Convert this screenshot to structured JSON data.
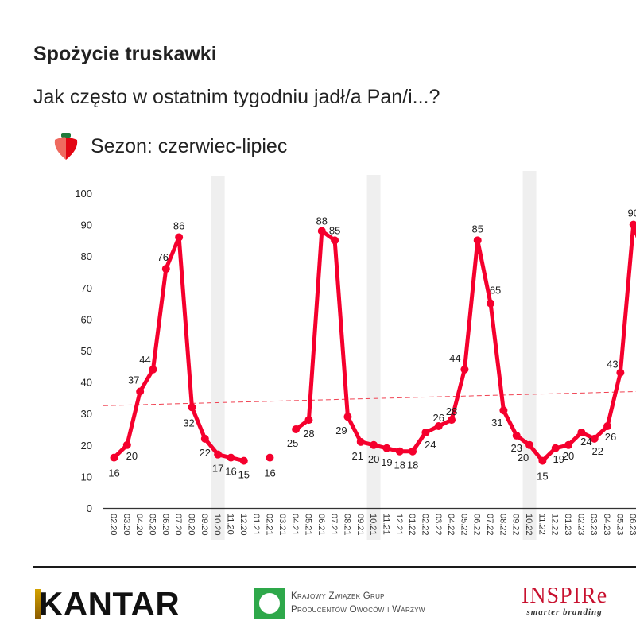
{
  "header": {
    "title": "Spożycie truskawki",
    "subtitle": "Jak często w ostatnim tygodniu jadł/a Pan/i...?",
    "season_label": "Sezon: czerwiec-lipiec",
    "season_icon": "strawberry-icon"
  },
  "colors": {
    "line": "#f5002d",
    "trend": "#f04050",
    "band": "#efefef",
    "axis": "#333333",
    "text": "#222222"
  },
  "chart_data": {
    "type": "line",
    "title": "Spożycie truskawki",
    "subtitle": "Jak często w ostatnim tygodniu jadł/a Pan/i...?",
    "xlabel": "",
    "ylabel": "",
    "ylim": [
      0,
      100
    ],
    "yticks": [
      0,
      10,
      20,
      30,
      40,
      50,
      60,
      70,
      80,
      90,
      100
    ],
    "grid": false,
    "legend": "none",
    "categories": [
      "02.20",
      "03.20",
      "04.20",
      "05.20",
      "06.20",
      "07.20",
      "08.20",
      "09.20",
      "10.20",
      "11.20",
      "12.20",
      "01.21",
      "02.21",
      "03.21",
      "04.21",
      "05.21",
      "06.21",
      "07.21",
      "08.21",
      "09.21",
      "10.21",
      "11.21",
      "12.21",
      "01.22",
      "02.22",
      "03.22",
      "04.22",
      "05.22",
      "06.22",
      "07.22",
      "08.22",
      "09.22",
      "10.22",
      "11.22",
      "12.22",
      "01.23",
      "02.23",
      "03.23",
      "04.23",
      "05.23",
      "06.23"
    ],
    "series": [
      {
        "name": "Spożycie truskawki",
        "values": [
          16,
          20,
          37,
          44,
          76,
          86,
          32,
          22,
          17,
          16,
          15,
          null,
          16,
          null,
          25,
          28,
          88,
          85,
          29,
          21,
          20,
          19,
          18,
          18,
          24,
          26,
          28,
          44,
          85,
          65,
          31,
          23,
          20,
          15,
          19,
          20,
          24,
          22,
          26,
          43,
          90
        ]
      }
    ],
    "trendline": {
      "type": "linear",
      "start_value": 32.5,
      "end_value": 37
    },
    "highlight_bands": [
      "10.20",
      "10.21",
      "10.22"
    ],
    "annotations": [
      "Sezon: czerwiec-lipiec"
    ]
  },
  "footer": {
    "logos": {
      "kantar": "KANTAR",
      "kzg_line1": "Krajowy Związek Grup",
      "kzg_line2": "Producentów Owoców i Warzyw",
      "inspire": "INSPIRe",
      "inspire_tagline": "smarter branding"
    }
  }
}
